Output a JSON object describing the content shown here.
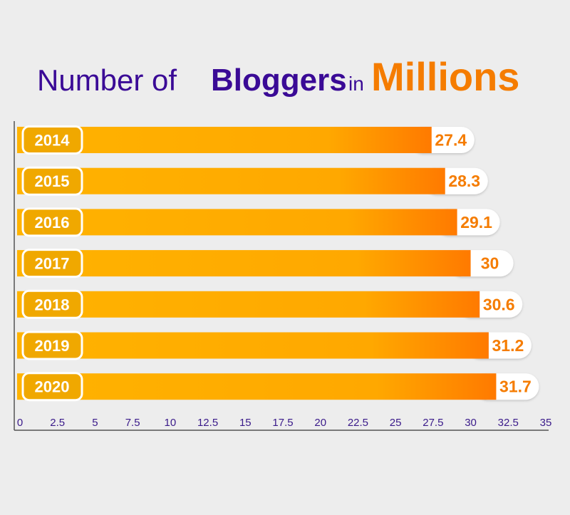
{
  "title": {
    "part1": "Number of",
    "part2": "Bloggers",
    "part3": "in",
    "part4": "Millions"
  },
  "colors": {
    "background": "#ededed",
    "title_purple": "#3a0a96",
    "accent_orange": "#f57c00",
    "bar_light": "#ffb300",
    "bar_dark": "#ff7a00",
    "label_pill": "#f0a800",
    "axis_text": "#3a1a8a"
  },
  "chart_data": {
    "type": "bar",
    "orientation": "horizontal",
    "categories": [
      "2014",
      "2015",
      "2016",
      "2017",
      "2018",
      "2019",
      "2020"
    ],
    "values": [
      27.4,
      28.3,
      29.1,
      30,
      30.6,
      31.2,
      31.7
    ],
    "value_labels": [
      "27.4",
      "28.3",
      "29.1",
      "30",
      "30.6",
      "31.2",
      "31.7"
    ],
    "xlim": [
      0,
      35
    ],
    "x_ticks": [
      "0",
      "2.5",
      "5",
      "7.5",
      "10",
      "12.5",
      "15",
      "17.5",
      "20",
      "22.5",
      "25",
      "27.5",
      "30",
      "32.5",
      "35"
    ],
    "grid": false,
    "legend": "none"
  }
}
